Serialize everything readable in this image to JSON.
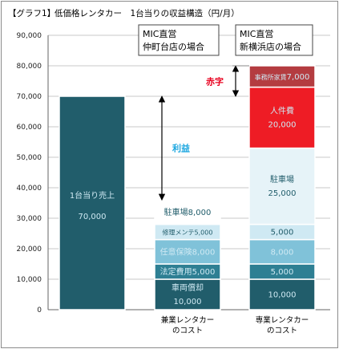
{
  "tag": "【グラフ1】",
  "title": "低価格レンタカー　1台当りの収益構造（円/月）",
  "colors": {
    "dark": "#215d6b",
    "teal": "#2e7f93",
    "medium": "#80c2d9",
    "light": "#cfe9f3",
    "pale": "#e6f3f8",
    "red": "#ee1c25",
    "darkred": "#b43c40",
    "accent_red": "#e8001e",
    "accent_blue": "#1da7e0"
  },
  "chart_data": {
    "type": "bar",
    "stacked": true,
    "ylim": [
      0,
      90000
    ],
    "yticks": [
      "0",
      "10,000",
      "20,000",
      "30,000",
      "40,000",
      "50,000",
      "60,000",
      "70,000",
      "80,000",
      "90,000"
    ],
    "grid": true,
    "categories": [
      "",
      "兼業レンタカー\nのコスト",
      "専業レンタカー\nのコスト"
    ],
    "bars": [
      {
        "category": "",
        "segments": [
          {
            "name": "1台当り売上",
            "value": 70000,
            "value_label": "70,000",
            "color": "dark",
            "text": "light"
          }
        ]
      },
      {
        "category": "兼業レンタカー\nのコスト",
        "segments": [
          {
            "name": "車両償却",
            "value": 10000,
            "value_label": "10,000",
            "color": "dark",
            "text": "light",
            "layout": "stacked"
          },
          {
            "name": "法定費用",
            "value": 5000,
            "value_label": "5,000",
            "color": "teal",
            "text": "light"
          },
          {
            "name": "任意保険",
            "value": 8000,
            "value_label": "8,000",
            "color": "medium",
            "text": "light"
          },
          {
            "name": "修理メンテ",
            "value": 5000,
            "value_label": "5,000",
            "color": "light",
            "text": "dark",
            "size": "small"
          },
          {
            "name": "駐車場",
            "value": 8000,
            "value_label": "8,000",
            "color": "white",
            "text": "dark"
          }
        ]
      },
      {
        "category": "専業レンタカー\nのコスト",
        "segments": [
          {
            "name": "",
            "value": 10000,
            "value_label": "10,000",
            "color": "dark",
            "text": "light"
          },
          {
            "name": "",
            "value": 5000,
            "value_label": "5,000",
            "color": "teal",
            "text": "light"
          },
          {
            "name": "",
            "value": 8000,
            "value_label": "8,000",
            "color": "medium",
            "text": "light"
          },
          {
            "name": "",
            "value": 5000,
            "value_label": "5,000",
            "color": "light",
            "text": "dark"
          },
          {
            "name": "駐車場",
            "value": 25000,
            "value_label": "25,000",
            "color": "pale",
            "text": "dark",
            "layout": "stacked"
          },
          {
            "name": "人件費",
            "value": 20000,
            "value_label": "20,000",
            "color": "red",
            "text": "light",
            "layout": "stacked"
          },
          {
            "name": "事務所家賃",
            "value": 7000,
            "value_label": "7,000",
            "color": "darkred",
            "text": "light",
            "size": "small_name"
          }
        ]
      }
    ],
    "annotations": [
      {
        "id": "profit",
        "text": "利益",
        "color": "accent_blue",
        "from": 70000,
        "to": 36000
      },
      {
        "id": "deficit",
        "text": "赤字",
        "color": "accent_red",
        "from": 80000,
        "to": 70000
      }
    ],
    "callouts": [
      {
        "text1": "MIC直営",
        "text2": "仲町台店の場合"
      },
      {
        "text1": "MIC直営",
        "text2": "新横浜店の場合"
      }
    ]
  }
}
